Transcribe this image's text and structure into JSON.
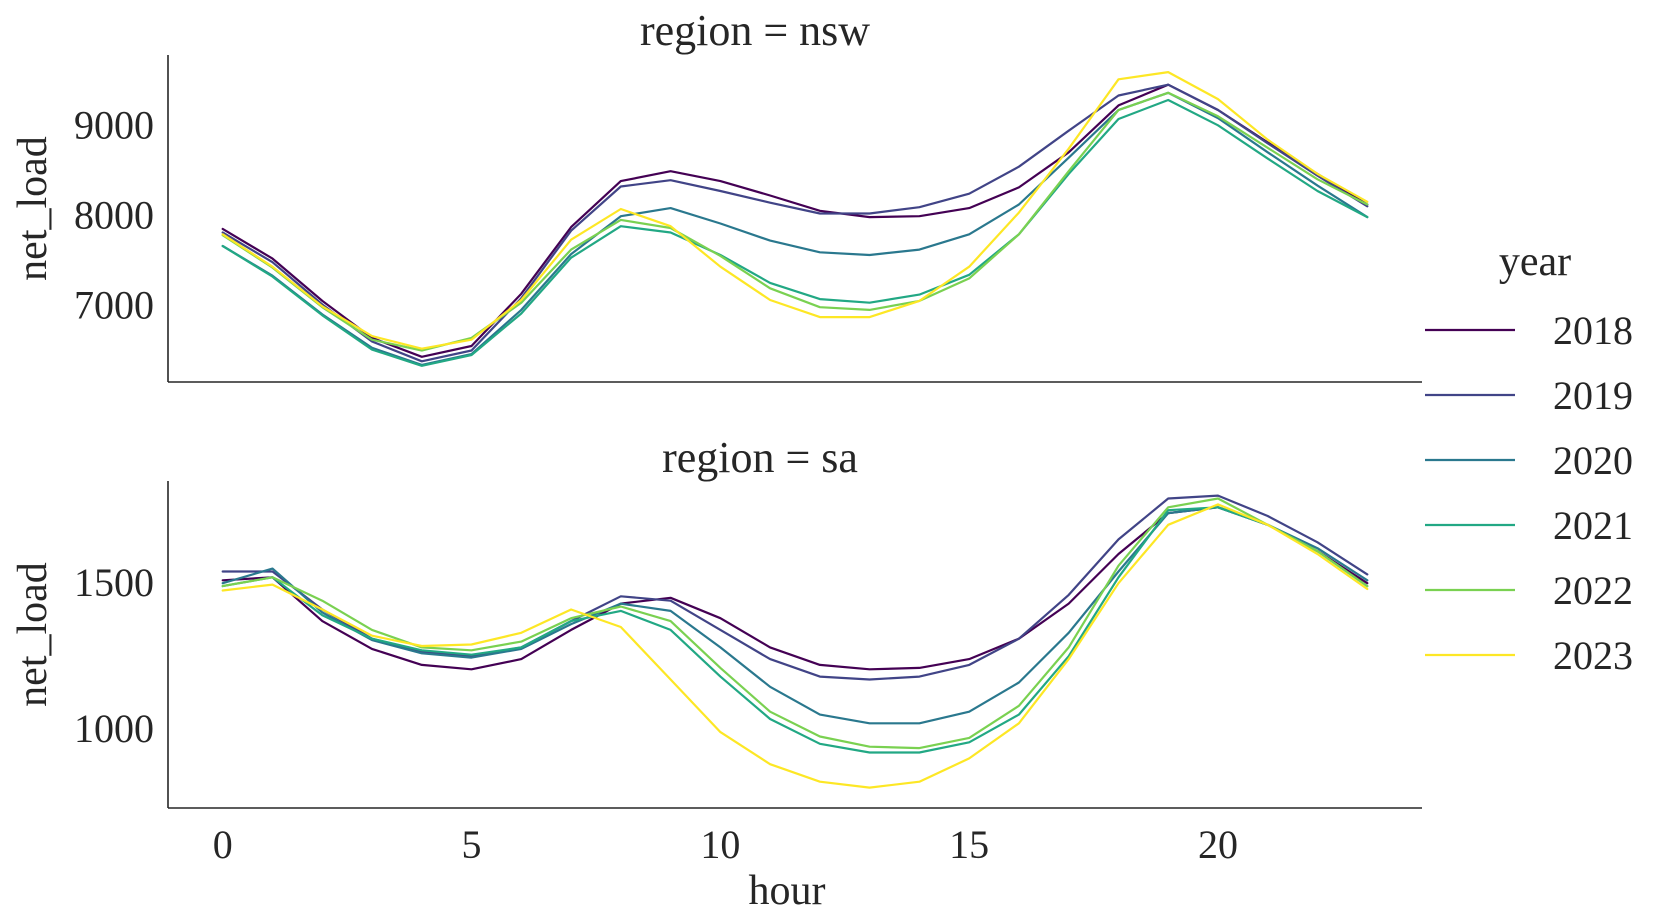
{
  "chart_data": [
    {
      "type": "line",
      "title": "region = nsw",
      "xlabel": "",
      "ylabel": "net_load",
      "xlim": [
        -1.1,
        24.1
      ],
      "ylim": [
        6150,
        9780
      ],
      "xticks": [
        0,
        5,
        10,
        15,
        20
      ],
      "yticks": [
        7000,
        8000,
        9000
      ],
      "show_xticks": false,
      "x": [
        0,
        1,
        2,
        3,
        4,
        5,
        6,
        7,
        8,
        9,
        10,
        11,
        12,
        13,
        14,
        15,
        16,
        17,
        18,
        19,
        20,
        21,
        22,
        23
      ],
      "series": [
        {
          "name": "2018",
          "color": "#440154",
          "values": [
            7850,
            7520,
            7050,
            6640,
            6430,
            6550,
            7130,
            7870,
            8380,
            8490,
            8380,
            8220,
            8050,
            7980,
            7990,
            8080,
            8310,
            8700,
            9220,
            9450,
            9170,
            8810,
            8460,
            8120
          ]
        },
        {
          "name": "2019",
          "color": "#414487",
          "values": [
            7810,
            7480,
            7010,
            6600,
            6380,
            6500,
            7080,
            7830,
            8320,
            8390,
            8270,
            8140,
            8020,
            8020,
            8090,
            8240,
            8540,
            8940,
            9330,
            9450,
            9170,
            8800,
            8440,
            8100
          ]
        },
        {
          "name": "2020",
          "color": "#2a788e",
          "values": [
            7660,
            7330,
            6900,
            6530,
            6340,
            6460,
            6950,
            7570,
            7990,
            8080,
            7910,
            7720,
            7590,
            7560,
            7620,
            7790,
            8120,
            8640,
            9170,
            9360,
            9080,
            8700,
            8330,
            7980
          ]
        },
        {
          "name": "2021",
          "color": "#22a884",
          "values": [
            7660,
            7320,
            6890,
            6510,
            6330,
            6450,
            6910,
            7530,
            7880,
            7810,
            7560,
            7250,
            7070,
            7030,
            7120,
            7340,
            7790,
            8460,
            9070,
            9280,
            9000,
            8630,
            8270,
            7980
          ]
        },
        {
          "name": "2022",
          "color": "#7ad151",
          "values": [
            7780,
            7420,
            6980,
            6620,
            6500,
            6640,
            7030,
            7620,
            7950,
            7860,
            7550,
            7190,
            6980,
            6950,
            7050,
            7300,
            7790,
            8490,
            9170,
            9360,
            9100,
            8750,
            8400,
            8120
          ]
        },
        {
          "name": "2023",
          "color": "#fde725",
          "values": [
            7790,
            7430,
            6990,
            6660,
            6520,
            6620,
            7060,
            7730,
            8070,
            7880,
            7430,
            7060,
            6870,
            6870,
            7050,
            7430,
            8030,
            8740,
            9510,
            9590,
            9290,
            8840,
            8460,
            8150
          ]
        }
      ]
    },
    {
      "type": "line",
      "title": "region = sa",
      "xlabel": "hour",
      "ylabel": "net_load",
      "xlim": [
        -1.1,
        24.1
      ],
      "ylim": [
        730,
        1850
      ],
      "xticks": [
        0,
        5,
        10,
        15,
        20
      ],
      "yticks": [
        1000,
        1500
      ],
      "show_xticks": true,
      "x": [
        0,
        1,
        2,
        3,
        4,
        5,
        6,
        7,
        8,
        9,
        10,
        11,
        12,
        13,
        14,
        15,
        16,
        17,
        18,
        19,
        20,
        21,
        22,
        23
      ],
      "series": [
        {
          "name": "2018",
          "color": "#440154",
          "values": [
            1510,
            1520,
            1370,
            1275,
            1220,
            1205,
            1240,
            1340,
            1430,
            1450,
            1380,
            1280,
            1220,
            1205,
            1210,
            1240,
            1310,
            1430,
            1600,
            1740,
            1760,
            1700,
            1610,
            1500
          ]
        },
        {
          "name": "2019",
          "color": "#414487",
          "values": [
            1540,
            1540,
            1410,
            1310,
            1265,
            1250,
            1280,
            1370,
            1455,
            1440,
            1340,
            1240,
            1180,
            1170,
            1180,
            1220,
            1310,
            1460,
            1650,
            1790,
            1800,
            1730,
            1640,
            1530
          ]
        },
        {
          "name": "2020",
          "color": "#2a788e",
          "values": [
            1500,
            1550,
            1400,
            1305,
            1260,
            1245,
            1275,
            1360,
            1430,
            1405,
            1280,
            1145,
            1050,
            1020,
            1020,
            1060,
            1160,
            1330,
            1540,
            1740,
            1760,
            1700,
            1620,
            1510
          ]
        },
        {
          "name": "2021",
          "color": "#22a884",
          "values": [
            1490,
            1520,
            1390,
            1310,
            1270,
            1255,
            1280,
            1370,
            1405,
            1340,
            1180,
            1035,
            950,
            920,
            920,
            955,
            1050,
            1250,
            1520,
            1750,
            1760,
            1700,
            1610,
            1490
          ]
        },
        {
          "name": "2022",
          "color": "#7ad151",
          "values": [
            1490,
            1520,
            1440,
            1340,
            1280,
            1270,
            1300,
            1380,
            1420,
            1370,
            1210,
            1060,
            975,
            940,
            935,
            970,
            1080,
            1280,
            1560,
            1760,
            1790,
            1700,
            1610,
            1490
          ]
        },
        {
          "name": "2023",
          "color": "#fde725",
          "values": [
            1475,
            1495,
            1410,
            1320,
            1285,
            1290,
            1330,
            1410,
            1350,
            1170,
            990,
            880,
            820,
            800,
            820,
            900,
            1020,
            1240,
            1500,
            1700,
            1770,
            1700,
            1600,
            1480
          ]
        }
      ]
    }
  ],
  "legend": {
    "title": "year",
    "placement": "right",
    "entries": [
      {
        "label": "2018",
        "color": "#440154"
      },
      {
        "label": "2019",
        "color": "#414487"
      },
      {
        "label": "2020",
        "color": "#2a788e"
      },
      {
        "label": "2021",
        "color": "#22a884"
      },
      {
        "label": "2022",
        "color": "#7ad151"
      },
      {
        "label": "2023",
        "color": "#fde725"
      }
    ]
  }
}
